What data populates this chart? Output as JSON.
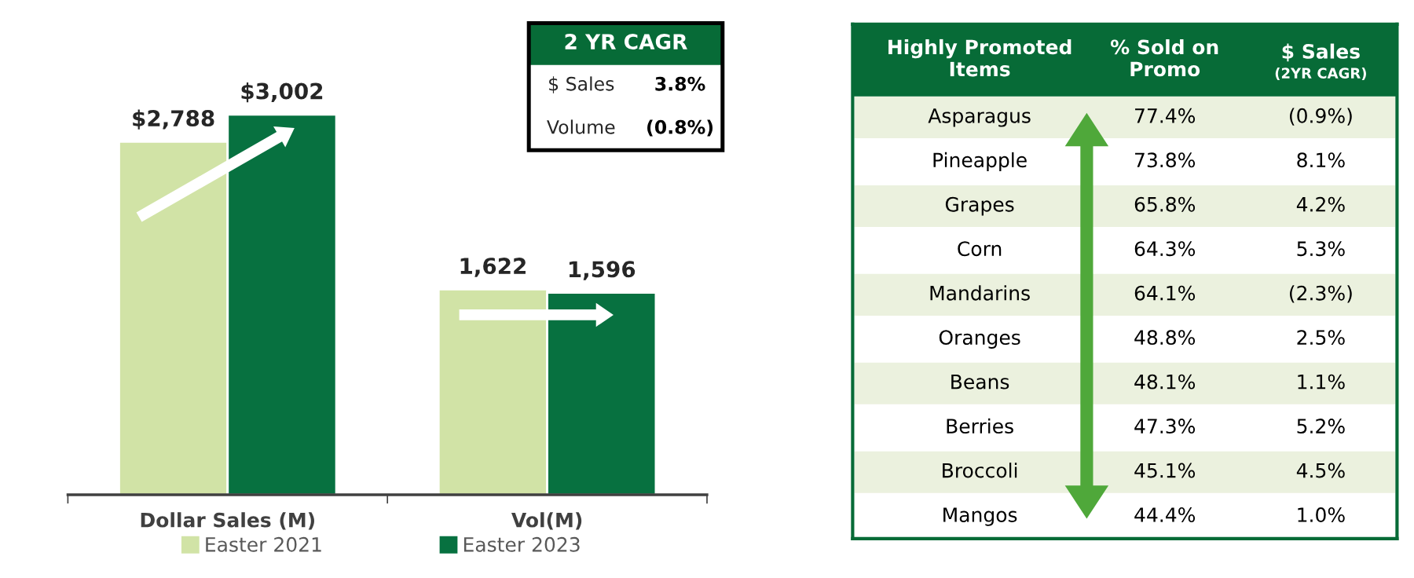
{
  "chart_data": [
    {
      "type": "bar",
      "categories": [
        "Dollar Sales (M)",
        "Vol(M)"
      ],
      "series": [
        {
          "name": "Easter 2021",
          "color": "#d1e3a6",
          "values": [
            2788,
            1622
          ],
          "value_labels": [
            "$2,788",
            "1,622"
          ]
        },
        {
          "name": "Easter 2023",
          "color": "#077140",
          "values": [
            3002,
            1596
          ],
          "value_labels": [
            "$3,002",
            "1,596"
          ]
        }
      ],
      "legend": "bottom",
      "tick_labels": "x",
      "grid": false
    },
    {
      "type": "other",
      "title": "2 YR CAGR",
      "categories": [
        "$ Sales",
        "Volume"
      ],
      "values": [
        3.8,
        -0.8
      ],
      "value_labels": [
        "3.8%",
        "(0.8%)"
      ]
    },
    {
      "type": "other",
      "ylabel": "Highly Promoted\nItems",
      "categories": [
        "Asparagus",
        "Pineapple",
        "Grapes",
        "Corn",
        "Mandarins",
        "Oranges",
        "Beans",
        "Berries",
        "Broccoli",
        "Mangos"
      ],
      "series": [
        {
          "name": "% Sold on\nPromo",
          "values": [
            77.4,
            73.8,
            65.8,
            64.3,
            64.1,
            48.8,
            48.1,
            47.3,
            45.1,
            44.4
          ],
          "value_labels": [
            "77.4%",
            "73.8%",
            "65.8%",
            "64.3%",
            "64.1%",
            "48.8%",
            "48.1%",
            "47.3%",
            "45.1%",
            "44.4%"
          ]
        },
        {
          "name": "$ Sales",
          "values": [
            -0.9,
            8.1,
            4.2,
            5.3,
            -2.3,
            2.5,
            1.1,
            5.2,
            4.5,
            1.0
          ],
          "value_labels": [
            "(0.9%)",
            "8.1%",
            "4.2%",
            "5.3%",
            "(2.3%)",
            "2.5%",
            "1.1%",
            "5.2%",
            "4.5%",
            "1.0%"
          ]
        }
      ],
      "annotations": [
        "(2YR CAGR)"
      ]
    }
  ]
}
